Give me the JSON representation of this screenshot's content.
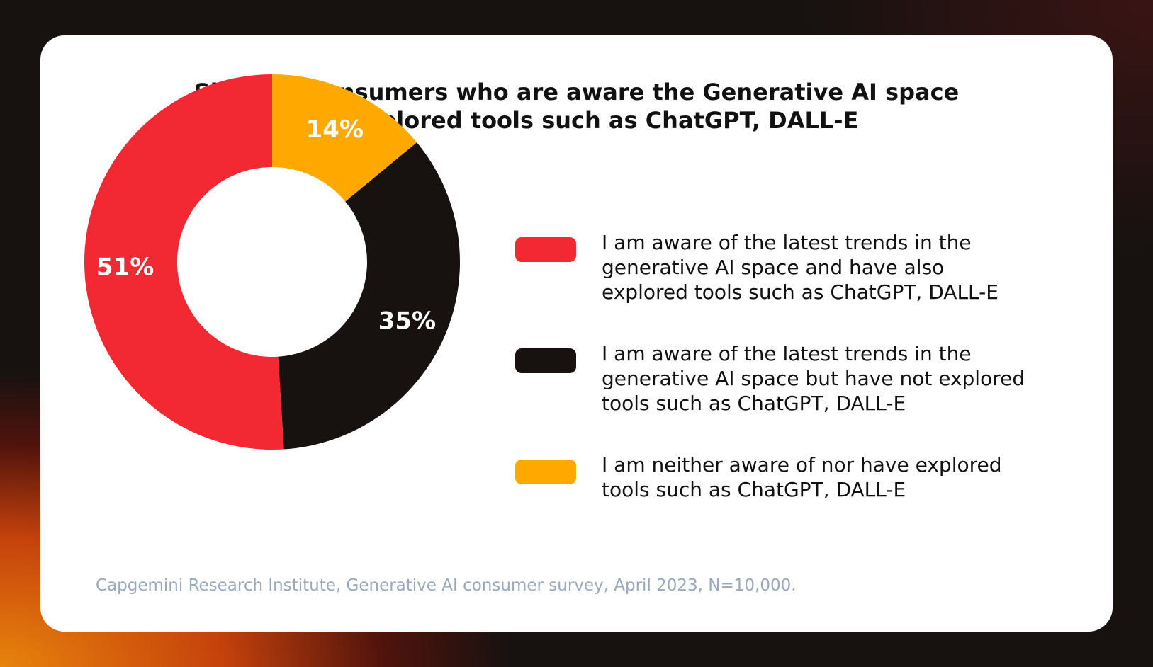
{
  "chart_data": {
    "type": "pie",
    "title": "Share of consumers who are aware the Generative AI space and explored tools such as ChatGPT, DALL-E",
    "title_lines": [
      "Share of consumers who are aware the Generative AI space",
      "and explored tools such as ChatGPT, DALL-E"
    ],
    "donut": true,
    "slices": [
      {
        "label": "I am aware of the latest trends in the generative AI space and have also explored tools such as ChatGPT, DALL-E",
        "value": 51,
        "display": "51%",
        "color": "#f22833"
      },
      {
        "label": "I am aware of the latest trends in the generative AI space but have not explored tools such as ChatGPT, DALL-E",
        "value": 35,
        "display": "35%",
        "color": "#17110f"
      },
      {
        "label": "I am neither aware of nor have explored tools such as ChatGPT, DALL-E",
        "value": 14,
        "display": "14%",
        "color": "#fea800"
      }
    ],
    "slice_order_clockwise_from_top": [
      2,
      1,
      0
    ],
    "legend_placement": "right"
  },
  "legend_lines": [
    [
      "I am aware of the latest trends in the",
      "generative AI space and have also",
      "explored tools such as ChatGPT, DALL-E"
    ],
    [
      "I am aware of the latest trends in the",
      "generative AI space but have not explored",
      "tools such as ChatGPT, DALL-E"
    ],
    [
      "I am neither aware of nor have explored",
      "tools such as ChatGPT, DALL-E"
    ]
  ],
  "source": "Capgemini Research Institute, Generative AI consumer survey, April 2023, N=10,000."
}
